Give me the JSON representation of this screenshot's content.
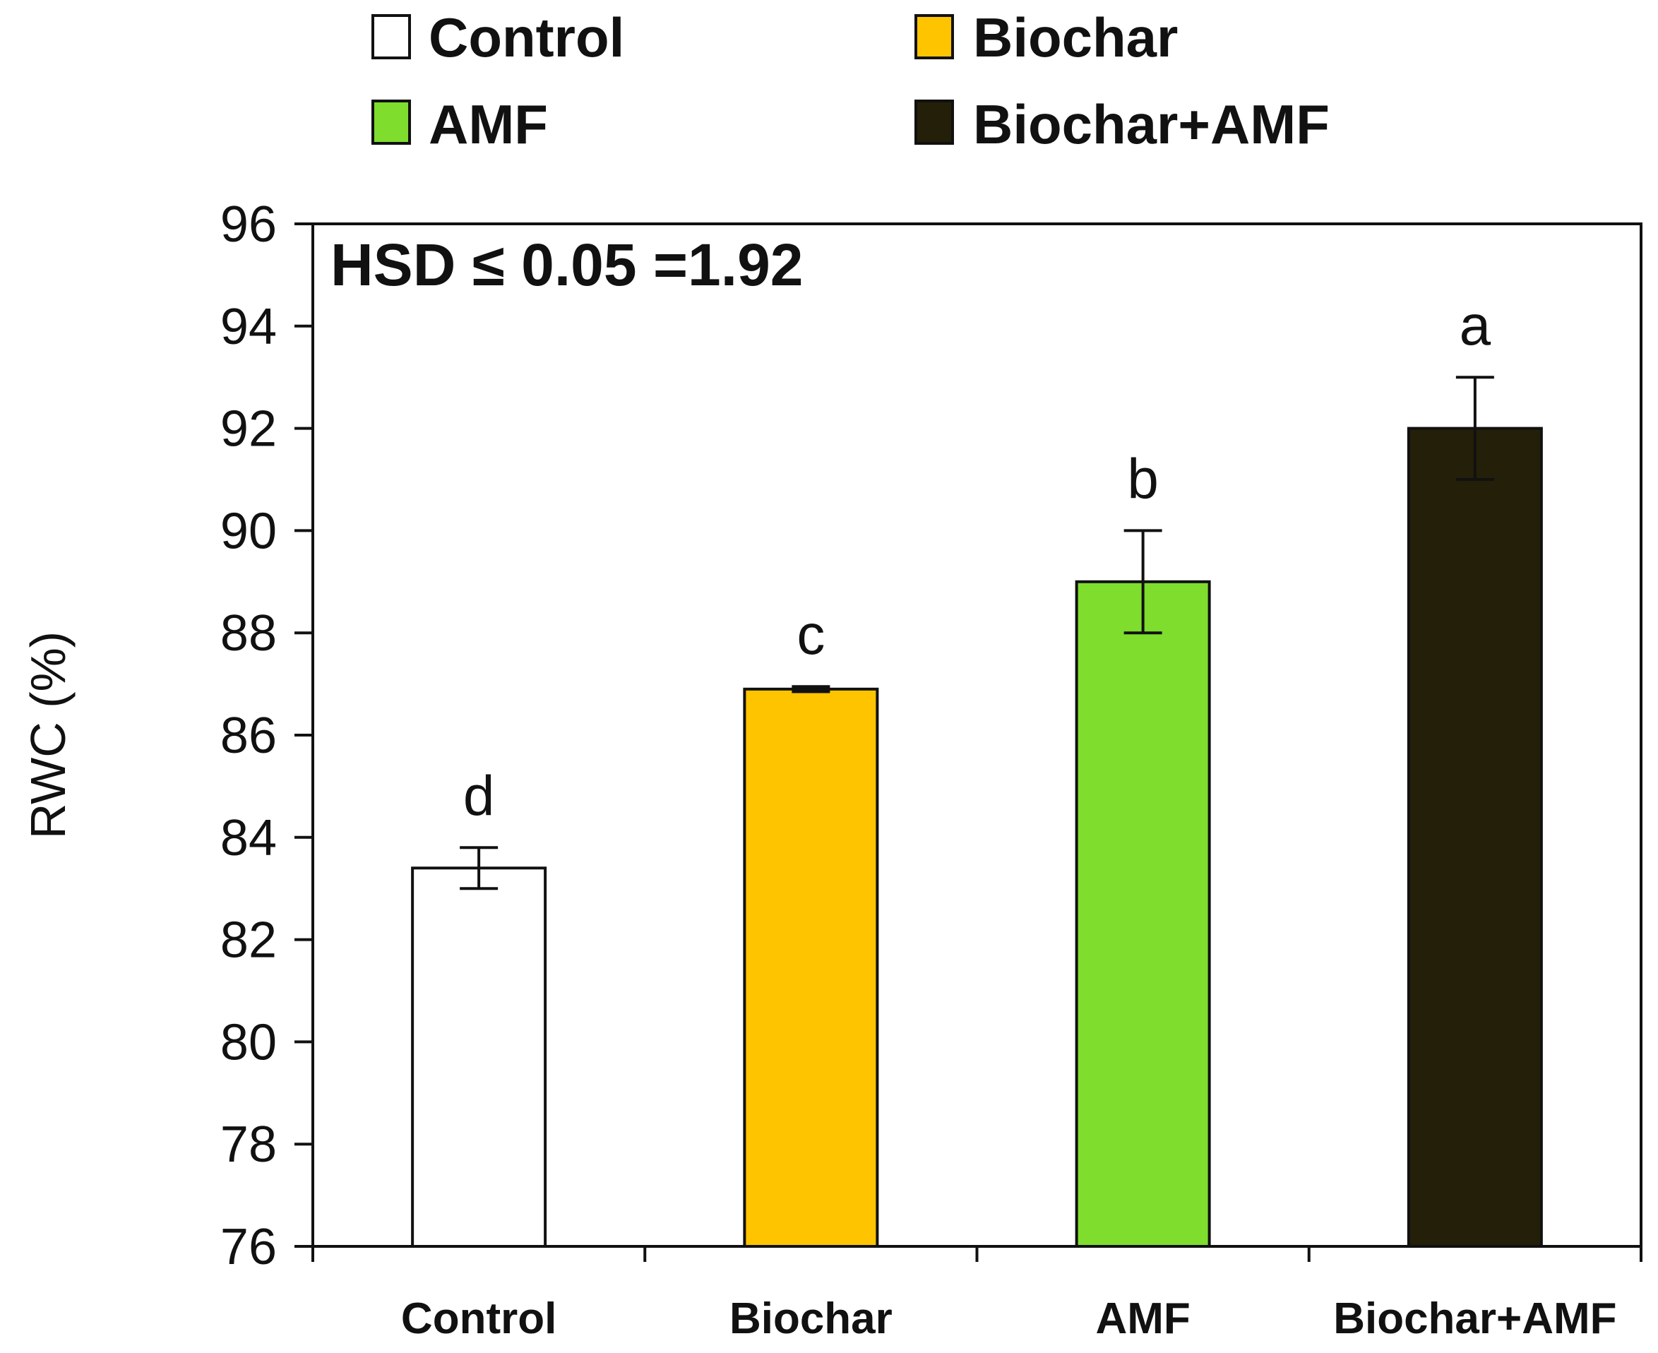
{
  "chart_data": {
    "type": "bar",
    "title": "",
    "xlabel": "",
    "ylabel": "RWC (%)",
    "ylim": [
      76,
      96
    ],
    "yticks": [
      "76",
      "78",
      "80",
      "82",
      "84",
      "86",
      "88",
      "90",
      "92",
      "94",
      "96"
    ],
    "categories": [
      "Control",
      "Biochar",
      "AMF",
      "Biochar+AMF"
    ],
    "values": [
      83.4,
      86.9,
      89.0,
      92.0
    ],
    "errors": [
      0.4,
      0.05,
      1.0,
      1.0
    ],
    "colors": [
      "#ffffff",
      "#ffc400",
      "#7fdd2e",
      "#241f08"
    ],
    "significance_letters": [
      "d",
      "c",
      "b",
      "a"
    ],
    "annotation": "HSD ≤ 0.05 =1.92",
    "legend": {
      "placement": "top",
      "entries": [
        {
          "label": "Control",
          "color": "#ffffff"
        },
        {
          "label": "Biochar",
          "color": "#ffc400"
        },
        {
          "label": "AMF",
          "color": "#7fdd2e"
        },
        {
          "label": "Biochar+AMF",
          "color": "#241f08"
        }
      ]
    }
  }
}
